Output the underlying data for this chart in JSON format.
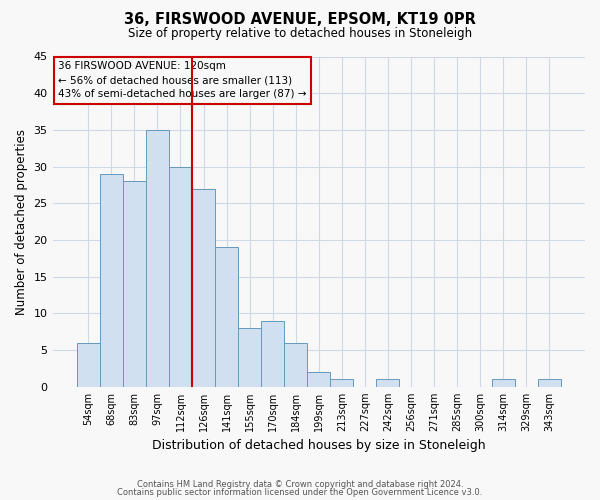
{
  "title": "36, FIRSWOOD AVENUE, EPSOM, KT19 0PR",
  "subtitle": "Size of property relative to detached houses in Stoneleigh",
  "xlabel": "Distribution of detached houses by size in Stoneleigh",
  "ylabel": "Number of detached properties",
  "bar_labels": [
    "54sqm",
    "68sqm",
    "83sqm",
    "97sqm",
    "112sqm",
    "126sqm",
    "141sqm",
    "155sqm",
    "170sqm",
    "184sqm",
    "199sqm",
    "213sqm",
    "227sqm",
    "242sqm",
    "256sqm",
    "271sqm",
    "285sqm",
    "300sqm",
    "314sqm",
    "329sqm",
    "343sqm"
  ],
  "bar_values": [
    6,
    29,
    28,
    35,
    30,
    27,
    19,
    8,
    9,
    6,
    2,
    1,
    0,
    1,
    0,
    0,
    0,
    0,
    1,
    0,
    1
  ],
  "bar_color": "#d0e0f0",
  "bar_edge_color": "#6699bb",
  "marker_bar_index": 5,
  "marker_line_color": "#cc0000",
  "ylim": [
    0,
    45
  ],
  "yticks": [
    0,
    5,
    10,
    15,
    20,
    25,
    30,
    35,
    40,
    45
  ],
  "annotation_title": "36 FIRSWOOD AVENUE: 120sqm",
  "annotation_line1": "← 56% of detached houses are smaller (113)",
  "annotation_line2": "43% of semi-detached houses are larger (87) →",
  "footnote1": "Contains HM Land Registry data © Crown copyright and database right 2024.",
  "footnote2": "Contains public sector information licensed under the Open Government Licence v3.0.",
  "background_color": "#f8f8f8",
  "grid_color": "#d0d8e8"
}
